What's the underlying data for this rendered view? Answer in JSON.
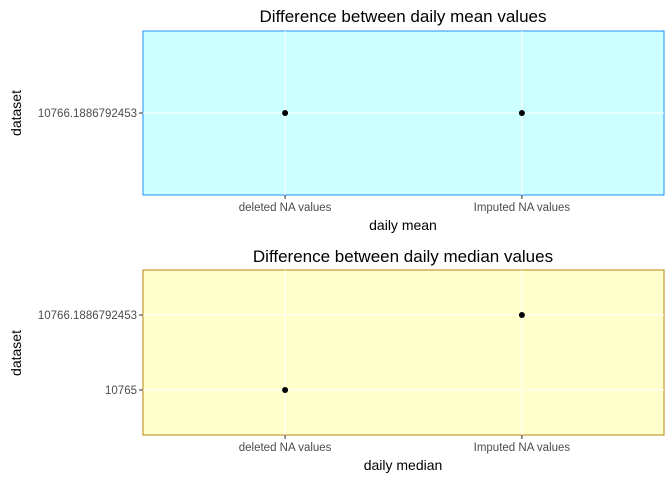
{
  "chart_data": [
    {
      "type": "scatter",
      "title": "Difference between daily mean values",
      "xlabel": "daily mean",
      "ylabel": "dataset",
      "categories": [
        "deleted NA values",
        "Imputed NA values"
      ],
      "y_ticks": [
        "10766.1886792453"
      ],
      "points": [
        {
          "x": "deleted NA values",
          "y": "10766.1886792453"
        },
        {
          "x": "Imputed NA values",
          "y": "10766.1886792453"
        }
      ],
      "grid": true,
      "legend": "none",
      "panel_fill": "#ccffff",
      "panel_border": "#1e90ff",
      "point_color": "#000000"
    },
    {
      "type": "scatter",
      "title": "Difference between daily median values",
      "xlabel": "daily median",
      "ylabel": "dataset",
      "categories": [
        "deleted NA values",
        "Imputed NA values"
      ],
      "y_ticks": [
        "10765",
        "10766.1886792453"
      ],
      "points": [
        {
          "x": "deleted NA values",
          "y": "10765"
        },
        {
          "x": "Imputed NA values",
          "y": "10766.1886792453"
        }
      ],
      "grid": true,
      "legend": "none",
      "panel_fill": "#ffffcc",
      "panel_border": "#b8860b",
      "point_color": "#000000"
    }
  ]
}
